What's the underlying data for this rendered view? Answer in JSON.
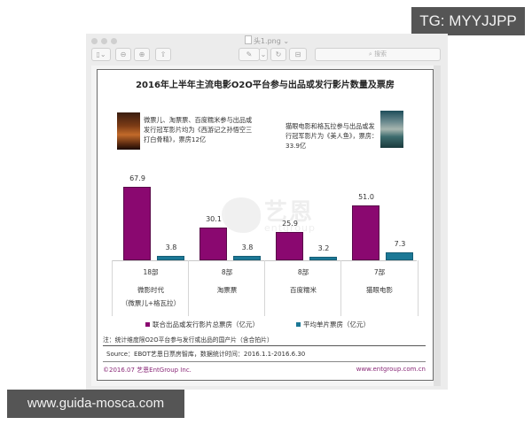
{
  "overlays": {
    "top_right_badge": "TG: MYYJJPP",
    "bottom_left_badge": "www.guida-mosca.com"
  },
  "window": {
    "title": "头1.png",
    "title_chevron": "⌄",
    "toolbar": {
      "sidebar_toggle_icon": "sidebar-icon",
      "zoom_out_icon": "zoom-out-icon",
      "zoom_in_icon": "zoom-in-icon",
      "share_icon": "share-icon",
      "markup_icon": "pen-icon",
      "rotate_icon": "rotate-icon",
      "toolbox_icon": "toolbox-icon",
      "search_placeholder": "搜索"
    }
  },
  "document": {
    "title": "2016年上半年主流电影O2O平台参与出品或发行影片数量及票房",
    "note_left": "微票儿、淘票票、百度糯米参与出品或发行冠军影片均为《西游记之孙悟空三打白骨精》，票房12亿",
    "note_right": "猫眼电影和格瓦拉参与出品或发行冠军影片为《美人鱼》，票房：33.9亿",
    "watermark_cn": "艺恩",
    "watermark_en": "entgroup",
    "legend": {
      "total": "联合出品或发行影片总票房（亿元）",
      "avg": "平均单片票房（亿元）"
    },
    "footnote": "注：统计维度限O2O平台参与发行或出品的国产片（含合拍片）",
    "source": "Source：EBOT艺恩日票房智库，数据统计时间：2016.1.1-2016.6.30",
    "copyright": "©2016.07 艺恩EntGroup Inc.",
    "website": "www.entgroup.com.cn",
    "colors": {
      "total": "#8a0870",
      "avg": "#1c7896"
    }
  },
  "chart_data": {
    "type": "bar",
    "title": "2016年上半年主流电影O2O平台参与出品或发行影片数量及票房",
    "categories": [
      "微影时代（微票儿+格瓦拉）",
      "淘票票",
      "百度糯米",
      "猫眼电影"
    ],
    "category_labels": [
      {
        "count": "18部",
        "name": "微影时代",
        "sub": "（微票儿+格瓦拉）"
      },
      {
        "count": "8部",
        "name": "淘票票",
        "sub": ""
      },
      {
        "count": "8部",
        "name": "百度糯米",
        "sub": ""
      },
      {
        "count": "7部",
        "name": "猫眼电影",
        "sub": ""
      }
    ],
    "series": [
      {
        "name": "联合出品或发行影片总票房（亿元）",
        "values": [
          67.9,
          30.1,
          25.9,
          51.0
        ],
        "labels": [
          "67.9",
          "30.1",
          "25.9",
          "51.0"
        ],
        "color": "#8a0870"
      },
      {
        "name": "平均单片票房（亿元）",
        "values": [
          3.8,
          3.8,
          3.2,
          7.3
        ],
        "labels": [
          "3.8",
          "3.8",
          "3.2",
          "7.3"
        ],
        "color": "#1c7896"
      }
    ],
    "film_counts": [
      18,
      8,
      8,
      7
    ],
    "xlabel": "",
    "ylabel": "",
    "grid": false,
    "legend_position": "bottom"
  }
}
